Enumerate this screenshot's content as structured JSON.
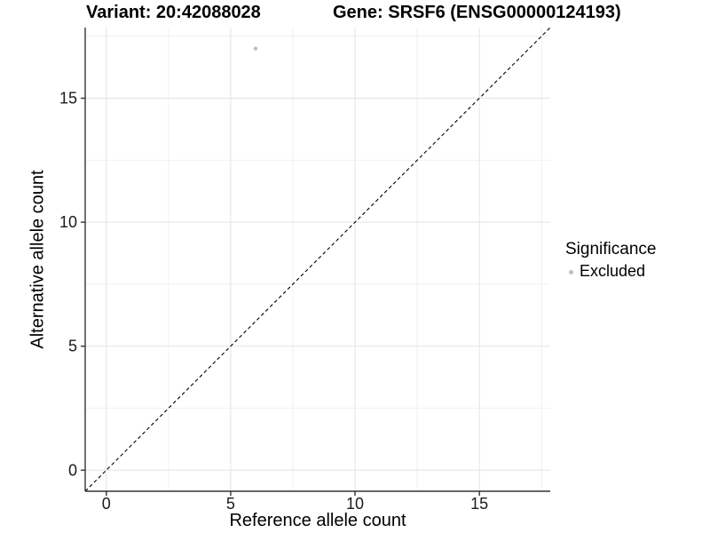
{
  "chart_data": {
    "type": "scatter",
    "title_left": "Variant: 20:42088028",
    "title_right": "Gene: SRSF6 (ENSG00000124193)",
    "xlabel": "Reference allele count",
    "ylabel": "Alternative allele count",
    "xlim": [
      -0.85,
      17.85
    ],
    "ylim": [
      -0.85,
      17.85
    ],
    "x_major_ticks": [
      0,
      5,
      10,
      15
    ],
    "x_minor_ticks": [
      2.5,
      7.5,
      12.5,
      17.5
    ],
    "y_major_ticks": [
      0,
      5,
      10,
      15
    ],
    "y_minor_ticks": [
      2.5,
      7.5,
      12.5,
      17.5
    ],
    "grid": true,
    "point_radius": 2.2,
    "reference_line": {
      "type": "identity",
      "slope": 1,
      "intercept": 0,
      "style": "dashed",
      "color": "#000000"
    },
    "series": [
      {
        "name": "Excluded",
        "color": "#bebebe",
        "points": [
          {
            "x": 6,
            "y": 17
          }
        ]
      }
    ],
    "legend": {
      "title": "Significance",
      "position": "right",
      "items": [
        {
          "label": "Excluded",
          "color": "#bebebe"
        }
      ]
    },
    "colors": {
      "axis": "#333333",
      "tick_label": "#1a1a1a",
      "grid_major": "#e3e3e3",
      "grid_minor": "#f0f0f0",
      "background": "#ffffff",
      "point": "#bebebe"
    }
  }
}
